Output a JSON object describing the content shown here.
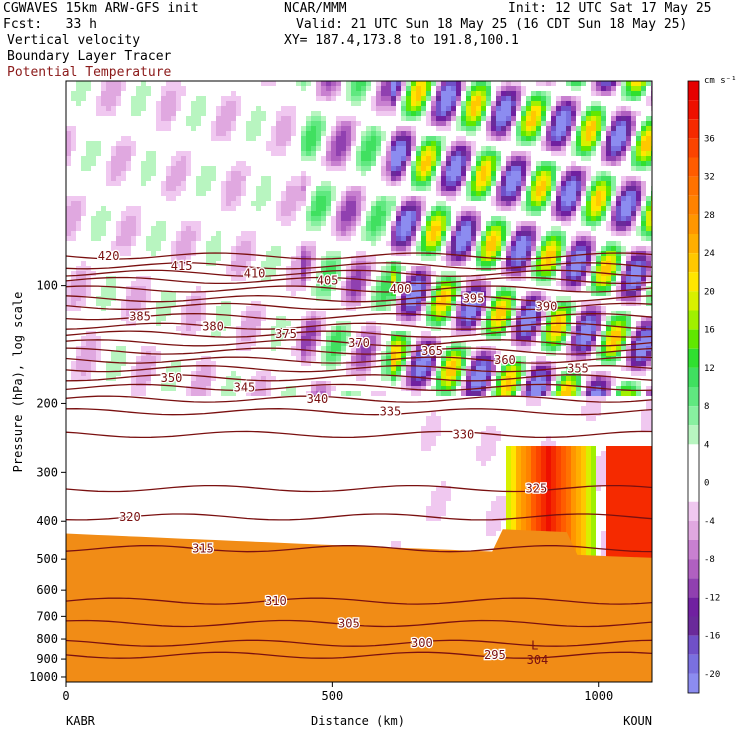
{
  "header": {
    "model": "CGWAVES 15km ARW-GFS init",
    "center": "NCAR/MMM",
    "init": "Init: 12 UTC Sat 17 May 25",
    "fcst": "Fcst:   33 h",
    "valid": "Valid: 21 UTC Sun 18 May 25 (16 CDT Sun 18 May 25)",
    "field1": "Vertical velocity",
    "field2": "Boundary Layer Tracer",
    "field3": "Potential Temperature",
    "xy": "XY= 187.4,173.8 to 191.8,100.1"
  },
  "colors": {
    "field3_text": "#8b1a1a",
    "theta_contour": "#7a1010",
    "tracer_fill": "#f18c16"
  },
  "chart_data": {
    "type": "heatmap",
    "xlabel": "Distance (km)",
    "ylabel": "Pressure (hPa), log scale",
    "x_ticks": [
      "0",
      "500",
      "1000"
    ],
    "x_tick_values": [
      0,
      500,
      1000
    ],
    "xlim": [
      0,
      1100
    ],
    "y_ticks": [
      "100",
      "200",
      "300",
      "400",
      "500",
      "600",
      "700",
      "800",
      "900",
      "1000"
    ],
    "y_tick_values": [
      100,
      200,
      300,
      400,
      500,
      600,
      700,
      800,
      900,
      1000
    ],
    "ylim": [
      1030,
      30
    ],
    "y_scale": "log",
    "left_endpoint": "KABR",
    "right_endpoint": "KOUN",
    "colorbar": {
      "unit": "cm s⁻¹",
      "tick_labels": [
        "36",
        "32",
        "28",
        "24",
        "20",
        "16",
        "12",
        "8",
        "4",
        "0",
        "-4",
        "-8",
        "-12",
        "-16",
        "-20"
      ],
      "tick_values": [
        36,
        32,
        28,
        24,
        20,
        16,
        12,
        8,
        4,
        0,
        -4,
        -8,
        -12,
        -16,
        -20
      ],
      "bins": [
        {
          "min": 40,
          "max": 42,
          "color": "#e60000"
        },
        {
          "min": 38,
          "max": 40,
          "color": "#ee1000"
        },
        {
          "min": 36,
          "max": 38,
          "color": "#f52a00"
        },
        {
          "min": 34,
          "max": 36,
          "color": "#fb4400"
        },
        {
          "min": 32,
          "max": 34,
          "color": "#ff5c00"
        },
        {
          "min": 30,
          "max": 32,
          "color": "#ff7200"
        },
        {
          "min": 28,
          "max": 30,
          "color": "#ff8200"
        },
        {
          "min": 26,
          "max": 28,
          "color": "#ff9600"
        },
        {
          "min": 24,
          "max": 26,
          "color": "#ffae00"
        },
        {
          "min": 22,
          "max": 24,
          "color": "#ffc800"
        },
        {
          "min": 20,
          "max": 22,
          "color": "#ffe600"
        },
        {
          "min": 18,
          "max": 20,
          "color": "#d8f000"
        },
        {
          "min": 16,
          "max": 18,
          "color": "#a0f000"
        },
        {
          "min": 14,
          "max": 16,
          "color": "#60e800"
        },
        {
          "min": 12,
          "max": 14,
          "color": "#30e030"
        },
        {
          "min": 10,
          "max": 12,
          "color": "#40e060"
        },
        {
          "min": 8,
          "max": 10,
          "color": "#60e880"
        },
        {
          "min": 6,
          "max": 8,
          "color": "#88f0a0"
        },
        {
          "min": 4,
          "max": 6,
          "color": "#b8f5c0"
        },
        {
          "min": 2,
          "max": 4,
          "color": "#ffffff"
        },
        {
          "min": -2,
          "max": 2,
          "color": "#ffffff"
        },
        {
          "min": -4,
          "max": -2,
          "color": "#f0c8f0"
        },
        {
          "min": -6,
          "max": -4,
          "color": "#e0a8e0"
        },
        {
          "min": -8,
          "max": -6,
          "color": "#c880d0"
        },
        {
          "min": -10,
          "max": -8,
          "color": "#b060c0"
        },
        {
          "min": -12,
          "max": -10,
          "color": "#9040b0"
        },
        {
          "min": -14,
          "max": -12,
          "color": "#7020a0"
        },
        {
          "min": -16,
          "max": -14,
          "color": "#6a2a9a"
        },
        {
          "min": -18,
          "max": -16,
          "color": "#7050c8"
        },
        {
          "min": -20,
          "max": -18,
          "color": "#7a70e0"
        },
        {
          "min": -22,
          "max": -20,
          "color": "#8c8cf0"
        }
      ]
    },
    "theta_contours": [
      {
        "label": "420",
        "p": 84
      },
      {
        "label": "415",
        "p": 89
      },
      {
        "label": "410",
        "p": 93
      },
      {
        "label": "405",
        "p": 97
      },
      {
        "label": "400",
        "p": 102
      },
      {
        "label": "395",
        "p": 108
      },
      {
        "label": "390",
        "p": 113
      },
      {
        "label": "385",
        "p": 120
      },
      {
        "label": "380",
        "p": 127
      },
      {
        "label": "375",
        "p": 133
      },
      {
        "label": "370",
        "p": 140
      },
      {
        "label": "365",
        "p": 147
      },
      {
        "label": "360",
        "p": 155
      },
      {
        "label": "355",
        "p": 163
      },
      {
        "label": "350",
        "p": 172
      },
      {
        "label": "345",
        "p": 182
      },
      {
        "label": "340",
        "p": 195
      },
      {
        "label": "335",
        "p": 210
      },
      {
        "label": "330",
        "p": 240
      },
      {
        "label": "325",
        "p": 330
      },
      {
        "label": "320",
        "p": 390
      },
      {
        "label": "315",
        "p": 470
      },
      {
        "label": "310",
        "p": 640
      },
      {
        "label": "305",
        "p": 730
      },
      {
        "label": "300",
        "p": 820
      },
      {
        "label": "295",
        "p": 880
      }
    ],
    "annotations": [
      {
        "text": "L",
        "x_km": 880,
        "p": 830
      },
      {
        "text": "304",
        "x_km": 885,
        "p": 905
      }
    ]
  }
}
